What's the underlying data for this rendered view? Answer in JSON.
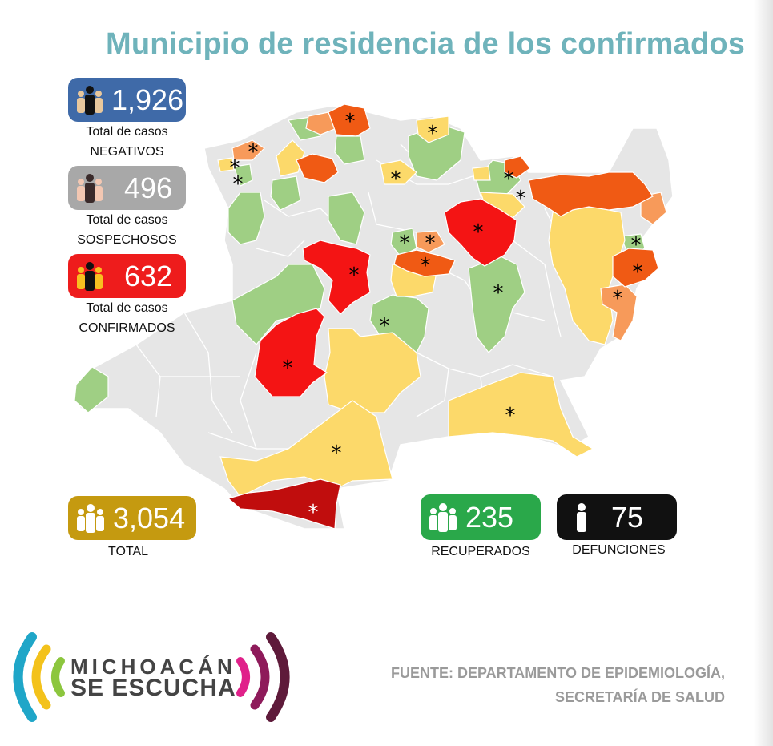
{
  "title": "Municipio de residencia de los confirmados",
  "stats": {
    "negativos": {
      "value": "1,926",
      "line1": "Total de casos",
      "line2": "NEGATIVOS",
      "color": "#3f6aa8"
    },
    "sospechosos": {
      "value": "496",
      "line1": "Total de casos",
      "line2": "SOSPECHOSOS",
      "color": "#a8a8a8"
    },
    "confirmados": {
      "value": "632",
      "line1": "Total de casos",
      "line2": "CONFIRMADOS",
      "color": "#ee1c1c"
    },
    "total": {
      "value": "3,054",
      "label": "TOTAL",
      "color": "#c59a10"
    },
    "recuperados": {
      "value": "235",
      "label": "RECUPERADOS",
      "color": "#2aa84a"
    },
    "defunciones": {
      "value": "75",
      "label": "DEFUNCIONES",
      "color": "#111111"
    }
  },
  "map": {
    "marker": "*",
    "colors": {
      "base": "#e6e6e6",
      "green": "#9fcf84",
      "yellow": "#fcd96a",
      "light_orange": "#f79a5a",
      "orange": "#f05a14",
      "red": "#f41414",
      "dark_red": "#c00d0d"
    }
  },
  "logo": {
    "line1": "MICHOACÁN",
    "line2": "SE ESCUCHA",
    "icons": [
      "sound-waves-left-icon",
      "sound-waves-right-icon"
    ]
  },
  "source": {
    "line1": "FUENTE: DEPARTAMENTO DE EPIDEMIOLOGÍA,",
    "line2": "SECRETARÍA DE SALUD"
  }
}
